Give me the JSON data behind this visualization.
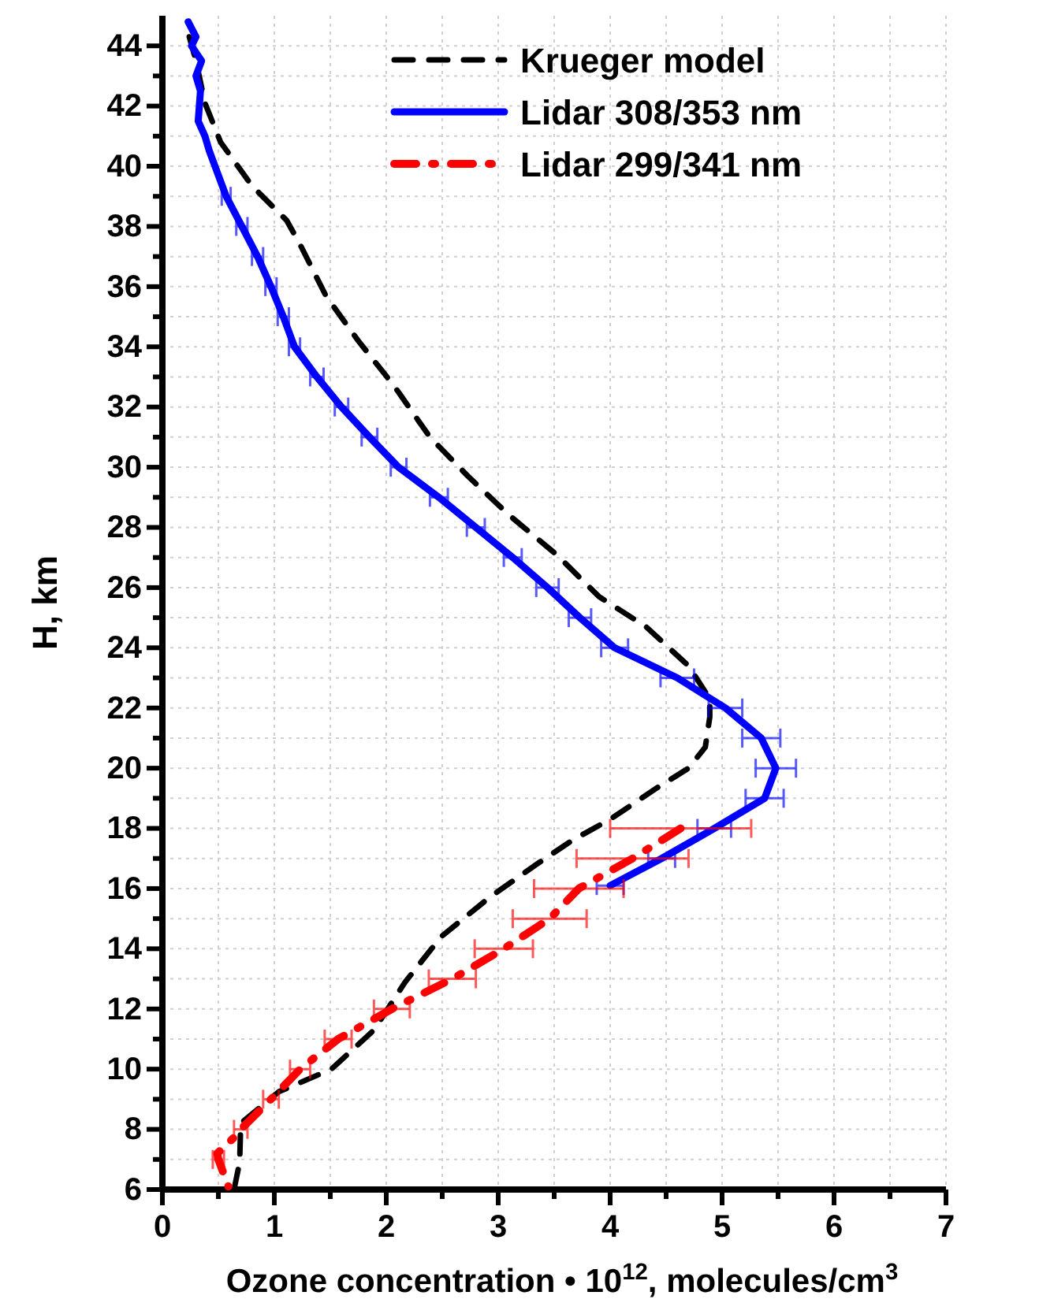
{
  "chart_data": {
    "type": "line",
    "xlabel": "Ozone concentration • 10$^{12}$, molecules/cm$^{3}$",
    "ylabel": "H, km",
    "xlim": [
      0,
      7
    ],
    "ylim": [
      6,
      45
    ],
    "xticks": [
      0,
      {
        "value": 0.5,
        "label": null
      },
      1,
      {
        "value": 1.5,
        "label": null
      },
      2,
      {
        "value": 2.5,
        "label": null
      },
      3,
      {
        "value": 3.5,
        "label": null
      },
      4,
      {
        "value": 4.5,
        "label": null
      },
      5,
      {
        "value": 5.5,
        "label": null
      },
      6,
      {
        "value": 6.5,
        "label": null
      },
      7
    ],
    "yticks": [
      6,
      {
        "value": 7,
        "label": null
      },
      8,
      {
        "value": 9,
        "label": null
      },
      10,
      {
        "value": 11,
        "label": null
      },
      12,
      {
        "value": 13,
        "label": null
      },
      14,
      {
        "value": 15,
        "label": null
      },
      16,
      {
        "value": 17,
        "label": null
      },
      18,
      {
        "value": 19,
        "label": null
      },
      20,
      {
        "value": 21,
        "label": null
      },
      22,
      {
        "value": 23,
        "label": null
      },
      24,
      {
        "value": 25,
        "label": null
      },
      26,
      {
        "value": 27,
        "label": null
      },
      28,
      {
        "value": 29,
        "label": null
      },
      30,
      {
        "value": 31,
        "label": null
      },
      32,
      {
        "value": 33,
        "label": null
      },
      34,
      {
        "value": 35,
        "label": null
      },
      36,
      {
        "value": 37,
        "label": null
      },
      38,
      {
        "value": 39,
        "label": null
      },
      40,
      {
        "value": 41,
        "label": null
      },
      42,
      {
        "value": 43,
        "label": null
      },
      44
    ],
    "grid": true,
    "legend": "top right",
    "marker": "none",
    "series": [
      {
        "name": "Krueger model",
        "color": "#000000",
        "line_style": "dashed",
        "x": [
          0.24,
          0.3,
          0.38,
          0.52,
          0.8,
          1.11,
          1.23,
          1.46,
          1.75,
          2.07,
          2.39,
          2.73,
          3.1,
          3.52,
          3.9,
          4.32,
          4.7,
          4.89,
          4.89,
          4.85,
          4.7,
          4.42,
          4.0,
          3.66,
          3.34,
          2.92,
          2.49,
          2.17,
          1.89,
          1.51,
          1.04,
          0.7,
          0.69,
          0.64
        ],
        "values": [
          44.3,
          43.5,
          42.1,
          40.8,
          39.35,
          38.2,
          37.4,
          35.7,
          34.2,
          32.7,
          31.0,
          29.7,
          28.4,
          27.1,
          25.7,
          24.7,
          23.4,
          22.3,
          21.7,
          20.7,
          20.0,
          19.35,
          18.3,
          17.6,
          16.8,
          15.7,
          14.4,
          12.9,
          11.3,
          10.0,
          9.25,
          8.2,
          6.9,
          6.0
        ]
      },
      {
        "name": "Lidar 308/353 nm",
        "color": "#0000ff",
        "line_style": "solid",
        "x": [
          0.23,
          0.3,
          0.26,
          0.35,
          0.3,
          0.34,
          0.33,
          0.32,
          0.38,
          0.42,
          0.47,
          0.57,
          0.71,
          0.85,
          0.97,
          1.08,
          1.18,
          1.38,
          1.6,
          1.85,
          2.11,
          2.47,
          2.8,
          3.13,
          3.44,
          3.73,
          4.04,
          4.6,
          5.03,
          5.35,
          5.48,
          5.38,
          4.93,
          4.46,
          4.0
        ],
        "values": [
          44.8,
          44.3,
          44,
          43.5,
          43,
          42.5,
          42,
          41.5,
          41,
          40.5,
          40,
          39,
          38,
          37,
          36,
          35,
          34,
          33,
          32,
          31,
          30,
          29,
          28,
          27,
          26,
          25,
          24,
          23,
          22,
          21,
          20,
          19,
          18,
          17,
          16.1
        ],
        "xerrors": [
          null,
          null,
          null,
          null,
          null,
          null,
          null,
          null,
          null,
          null,
          null,
          0.04,
          0.05,
          0.05,
          0.05,
          0.05,
          0.05,
          0.06,
          0.06,
          0.07,
          0.07,
          0.08,
          0.08,
          0.08,
          0.1,
          0.1,
          0.12,
          0.15,
          0.15,
          0.17,
          0.18,
          0.17,
          0.15,
          0.12,
          0.12
        ]
      },
      {
        "name": "Lidar 299/341 nm",
        "color": "#ff0000",
        "line_style": "dashdot",
        "x": [
          4.63,
          4.2,
          3.72,
          3.46,
          3.05,
          2.59,
          2.05,
          1.57,
          1.23,
          0.97,
          0.7,
          0.66,
          0.49,
          0.5,
          0.59
        ],
        "values": [
          18,
          17,
          16,
          15,
          14,
          13,
          12,
          11,
          10,
          9,
          8,
          7.8,
          7.2,
          7,
          6.1
        ],
        "xerrors": [
          0.63,
          0.5,
          0.4,
          0.33,
          0.26,
          0.21,
          0.16,
          0.12,
          0.09,
          0.07,
          0.06,
          null,
          null,
          0.05,
          null
        ]
      }
    ]
  }
}
